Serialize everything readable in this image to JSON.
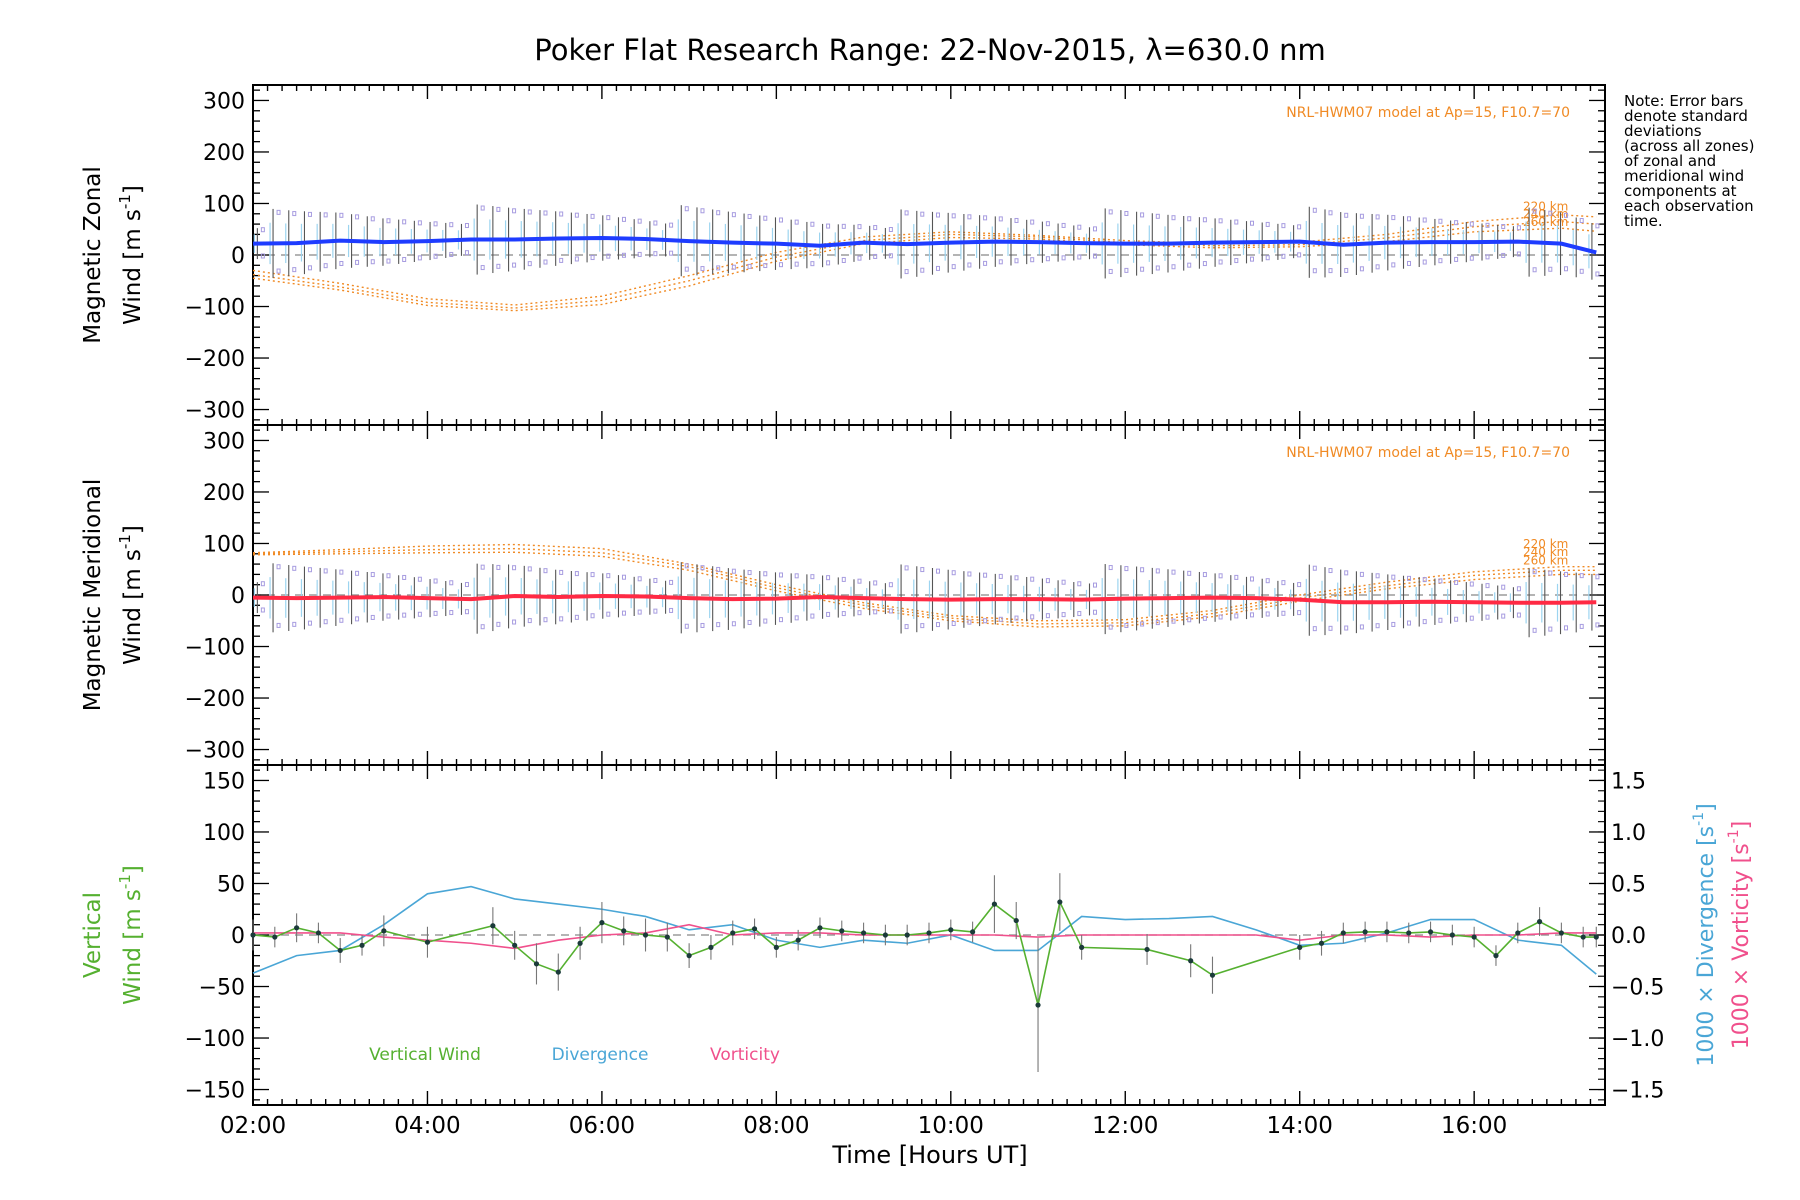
{
  "title": "Poker Flat Research Range: 22-Nov-2015, λ=630.0 nm",
  "note_lines": [
    "Note: Error bars",
    "denote standard",
    "deviations",
    "(across all zones)",
    "of zonal and",
    "meridional wind",
    "components at",
    "each observation",
    "time."
  ],
  "colors": {
    "zonal": "#1e3cff",
    "meridional": "#ff2a44",
    "model": "#f08a24",
    "vertical": "#55b030",
    "divergence": "#4aa6d6",
    "vorticity": "#f0508c",
    "zone_points": "#a79ce0",
    "zone_points_light": "#9cd4f0",
    "errorbar": "#555555"
  },
  "chart_data": [
    {
      "type": "line",
      "panel": "zonal",
      "ylabel_line1": "Magnetic Zonal",
      "ylabel_line2": "Wind [m s",
      "ylabel_exp": "-1",
      "ylabel_tail": "]",
      "ylim": [
        -330,
        330
      ],
      "yticks": [
        "300",
        "200",
        "100",
        "0",
        "−100",
        "−200",
        "−300"
      ],
      "yticks_values": [
        300,
        200,
        100,
        0,
        -100,
        -200,
        -300
      ],
      "model_label": "NRL-HWM07 model at Ap=15, F10.7=70",
      "model_altitudes": [
        "220 km",
        "240 km",
        "260 km"
      ],
      "series": [
        {
          "name": "",
          "x": [
            2.0,
            2.5,
            3.0,
            3.5,
            4.0,
            4.5,
            5.0,
            5.5,
            6.0,
            6.5,
            7.0,
            7.5,
            8.0,
            8.5,
            9.0,
            9.5,
            10.0,
            10.5,
            11.0,
            11.5,
            12.0,
            12.5,
            13.0,
            13.5,
            14.0,
            14.5,
            15.0,
            15.5,
            16.0,
            16.5,
            17.0,
            17.4
          ],
          "values": [
            22,
            23,
            28,
            25,
            27,
            30,
            30,
            32,
            33,
            31,
            27,
            24,
            22,
            18,
            24,
            21,
            24,
            26,
            25,
            23,
            22,
            22,
            24,
            25,
            26,
            20,
            24,
            25,
            25,
            26,
            22,
            5
          ]
        }
      ],
      "model": [
        {
          "x": [
            2.0,
            3.0,
            4.0,
            5.0,
            6.0,
            7.0,
            8.0,
            9.0,
            10.0,
            11.0,
            12.0,
            13.0,
            14.0,
            15.0,
            16.0,
            17.0,
            17.4
          ],
          "values": [
            -30,
            -55,
            -85,
            -97,
            -80,
            -40,
            5,
            35,
            45,
            38,
            28,
            22,
            25,
            40,
            65,
            78,
            74
          ]
        },
        {
          "x": [
            2.0,
            3.0,
            4.0,
            5.0,
            6.0,
            7.0,
            8.0,
            9.0,
            10.0,
            11.0,
            12.0,
            13.0,
            14.0,
            15.0,
            16.0,
            17.0,
            17.4
          ],
          "values": [
            -38,
            -62,
            -92,
            -103,
            -88,
            -50,
            -4,
            28,
            40,
            35,
            24,
            18,
            20,
            33,
            55,
            65,
            60
          ]
        },
        {
          "x": [
            2.0,
            3.0,
            4.0,
            5.0,
            6.0,
            7.0,
            8.0,
            9.0,
            10.0,
            11.0,
            12.0,
            13.0,
            14.0,
            15.0,
            16.0,
            17.0,
            17.4
          ],
          "values": [
            -45,
            -68,
            -98,
            -108,
            -96,
            -60,
            -12,
            22,
            34,
            31,
            20,
            14,
            16,
            26,
            45,
            52,
            46
          ]
        }
      ]
    },
    {
      "type": "line",
      "panel": "meridional",
      "ylabel_line1": "Magnetic Meridional",
      "ylabel_line2": "Wind [m s",
      "ylabel_exp": "-1",
      "ylabel_tail": "]",
      "ylim": [
        -330,
        330
      ],
      "yticks": [
        "300",
        "200",
        "100",
        "0",
        "−100",
        "−200",
        "−300"
      ],
      "yticks_values": [
        300,
        200,
        100,
        0,
        -100,
        -200,
        -300
      ],
      "model_label": "NRL-HWM07 model at Ap=15, F10.7=70",
      "model_altitudes": [
        "220 km",
        "240 km",
        "260 km"
      ],
      "series": [
        {
          "name": "",
          "x": [
            2.0,
            2.5,
            3.0,
            3.5,
            4.0,
            4.5,
            5.0,
            5.5,
            6.0,
            6.5,
            7.0,
            7.5,
            8.0,
            8.5,
            9.0,
            9.5,
            10.0,
            10.5,
            11.0,
            11.5,
            12.0,
            12.5,
            13.0,
            13.5,
            14.0,
            14.5,
            15.0,
            15.5,
            16.0,
            16.5,
            17.0,
            17.4
          ],
          "values": [
            -5,
            -6,
            -5,
            -4,
            -6,
            -8,
            -2,
            -4,
            -2,
            -3,
            -6,
            -8,
            -7,
            -4,
            -6,
            -8,
            -9,
            -8,
            -8,
            -9,
            -7,
            -6,
            -5,
            -6,
            -9,
            -14,
            -14,
            -13,
            -14,
            -15,
            -15,
            -14
          ]
        }
      ],
      "model": [
        {
          "x": [
            2.0,
            3.0,
            4.0,
            5.0,
            6.0,
            7.0,
            8.0,
            9.0,
            10.0,
            11.0,
            12.0,
            13.0,
            14.0,
            15.0,
            16.0,
            17.0,
            17.4
          ],
          "values": [
            82,
            88,
            95,
            98,
            90,
            60,
            20,
            -15,
            -40,
            -50,
            -48,
            -30,
            0,
            25,
            45,
            55,
            55
          ]
        },
        {
          "x": [
            2.0,
            3.0,
            4.0,
            5.0,
            6.0,
            7.0,
            8.0,
            9.0,
            10.0,
            11.0,
            12.0,
            13.0,
            14.0,
            15.0,
            16.0,
            17.0,
            17.4
          ],
          "values": [
            80,
            84,
            88,
            90,
            82,
            55,
            14,
            -20,
            -45,
            -56,
            -54,
            -36,
            -6,
            18,
            38,
            48,
            48
          ]
        },
        {
          "x": [
            2.0,
            3.0,
            4.0,
            5.0,
            6.0,
            7.0,
            8.0,
            9.0,
            10.0,
            11.0,
            12.0,
            13.0,
            14.0,
            15.0,
            16.0,
            17.0,
            17.4
          ],
          "values": [
            78,
            80,
            82,
            83,
            75,
            48,
            8,
            -26,
            -50,
            -62,
            -60,
            -42,
            -12,
            12,
            30,
            40,
            40
          ]
        }
      ]
    },
    {
      "type": "line",
      "panel": "vertical",
      "ylabel_line1": "Vertical",
      "ylabel_line2": "Wind [m s",
      "ylabel_exp": "-1",
      "ylabel_tail": "]",
      "ylim": [
        -165,
        165
      ],
      "yticks": [
        "150",
        "100",
        "50",
        "0",
        "−50",
        "−100",
        "−150"
      ],
      "yticks_values": [
        150,
        100,
        50,
        0,
        -50,
        -100,
        -150
      ],
      "y2lim": [
        -1.65,
        1.65
      ],
      "y2ticks": [
        "1.5",
        "1.0",
        "0.5",
        "0.0",
        "−0.5",
        "−1.0",
        "−1.5"
      ],
      "y2ticks_values": [
        1.5,
        1.0,
        0.5,
        0.0,
        -0.5,
        -1.0,
        -1.5
      ],
      "y2label_div": "1000 × Divergence [s",
      "y2label_vort": "1000 × Vorticity [s",
      "y2label_exp": "-1",
      "y2label_tail": "]",
      "legend": [
        "Vertical Wind",
        "Divergence",
        "Vorticity"
      ],
      "series": [
        {
          "name": "Vertical Wind",
          "x": [
            2.0,
            2.25,
            2.5,
            2.75,
            3.0,
            3.25,
            3.5,
            4.0,
            4.75,
            5.0,
            5.25,
            5.5,
            5.75,
            6.0,
            6.25,
            6.5,
            6.75,
            7.0,
            7.25,
            7.5,
            7.75,
            8.0,
            8.25,
            8.5,
            8.75,
            9.0,
            9.25,
            9.5,
            9.75,
            10.0,
            10.25,
            10.5,
            10.75,
            11.0,
            11.25,
            11.5,
            12.25,
            12.75,
            13.0,
            14.0,
            14.25,
            14.5,
            14.75,
            15.0,
            15.25,
            15.5,
            15.75,
            16.0,
            16.25,
            16.5,
            16.75,
            17.0,
            17.25,
            17.4
          ],
          "values": [
            0,
            -2,
            7,
            2,
            -15,
            -10,
            4,
            -7,
            9,
            -10,
            -28,
            -36,
            -8,
            12,
            4,
            0,
            -2,
            -20,
            -12,
            2,
            6,
            -12,
            -5,
            7,
            4,
            2,
            0,
            0,
            2,
            5,
            3,
            30,
            14,
            -68,
            32,
            -12,
            -14,
            -25,
            -39,
            -12,
            -8,
            2,
            3,
            3,
            2,
            3,
            0,
            -2,
            -20,
            2,
            13,
            2,
            -2,
            -2
          ],
          "errors": [
            15,
            10,
            14,
            10,
            12,
            10,
            15,
            15,
            18,
            14,
            20,
            18,
            16,
            20,
            14,
            16,
            14,
            12,
            12,
            12,
            10,
            10,
            10,
            10,
            10,
            10,
            10,
            10,
            10,
            10,
            10,
            28,
            18,
            65,
            28,
            12,
            15,
            16,
            18,
            12,
            12,
            10,
            10,
            10,
            10,
            10,
            10,
            10,
            10,
            10,
            14,
            10,
            10,
            10
          ]
        },
        {
          "name": "Divergence",
          "x": [
            2.0,
            2.5,
            3.0,
            3.5,
            4.0,
            4.5,
            5.0,
            5.5,
            6.0,
            6.5,
            7.0,
            7.5,
            8.0,
            8.5,
            9.0,
            9.5,
            10.0,
            10.5,
            11.0,
            11.5,
            12.0,
            12.5,
            13.0,
            13.5,
            14.0,
            14.5,
            15.0,
            15.5,
            16.0,
            16.5,
            17.0,
            17.4
          ],
          "values": [
            -0.37,
            -0.2,
            -0.15,
            0.1,
            0.4,
            0.47,
            0.35,
            0.3,
            0.25,
            0.18,
            0.05,
            0.1,
            -0.05,
            -0.12,
            -0.05,
            -0.08,
            0.0,
            -0.15,
            -0.15,
            0.18,
            0.15,
            0.16,
            0.18,
            0.05,
            -0.1,
            -0.08,
            0.02,
            0.15,
            0.15,
            -0.05,
            -0.1,
            -0.38
          ]
        },
        {
          "name": "Vorticity",
          "x": [
            2.0,
            2.5,
            3.0,
            3.5,
            4.0,
            4.5,
            5.0,
            5.5,
            6.0,
            6.5,
            7.0,
            7.5,
            8.0,
            8.5,
            9.0,
            9.5,
            10.0,
            10.5,
            11.0,
            11.5,
            12.0,
            12.5,
            13.0,
            13.5,
            14.0,
            14.5,
            15.0,
            15.5,
            16.0,
            16.5,
            17.0,
            17.4
          ],
          "values": [
            0.02,
            0.02,
            0.02,
            -0.02,
            -0.05,
            -0.08,
            -0.13,
            -0.05,
            0.0,
            0.02,
            0.1,
            0.0,
            0.02,
            0.02,
            0.0,
            0.0,
            0.0,
            0.0,
            -0.02,
            0.0,
            0.0,
            0.0,
            0.0,
            0.0,
            -0.05,
            0.0,
            0.0,
            -0.02,
            0.0,
            0.0,
            0.02,
            0.02
          ]
        }
      ]
    }
  ],
  "xaxis": {
    "xlim": [
      2.0,
      17.5
    ],
    "tick_values": [
      2,
      4,
      6,
      8,
      10,
      12,
      14,
      16
    ],
    "tick_labels": [
      "02:00",
      "04:00",
      "06:00",
      "08:00",
      "10:00",
      "12:00",
      "14:00",
      "16:00"
    ],
    "label": "Time [Hours UT]"
  }
}
